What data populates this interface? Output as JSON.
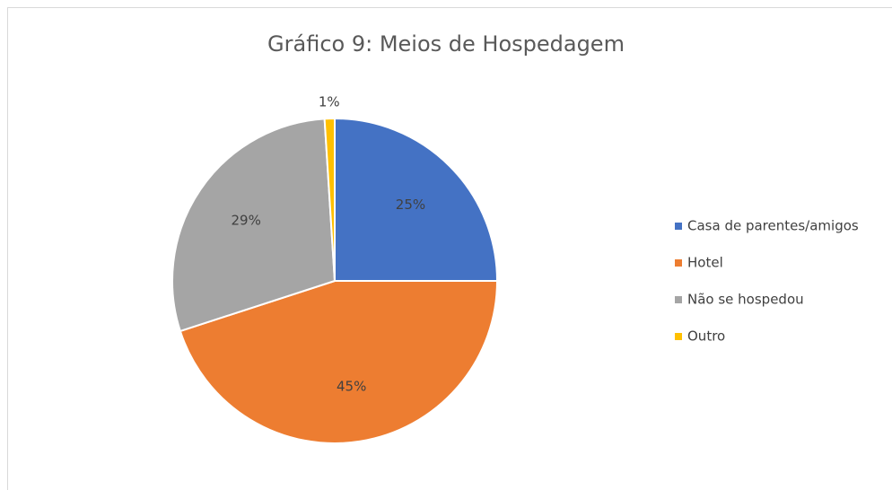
{
  "chart_data": {
    "type": "pie",
    "title": "Gráfico 9: Meios de Hospedagem",
    "categories": [
      "Casa de parentes/amigos",
      "Hotel",
      "Não se hospedou",
      "Outro"
    ],
    "values": [
      25,
      45,
      29,
      1
    ],
    "value_labels": [
      "25%",
      "45%",
      "29%",
      "1%"
    ],
    "colors": [
      "#4472c4",
      "#ed7d31",
      "#a5a5a5",
      "#ffc000"
    ],
    "legend": "right"
  }
}
